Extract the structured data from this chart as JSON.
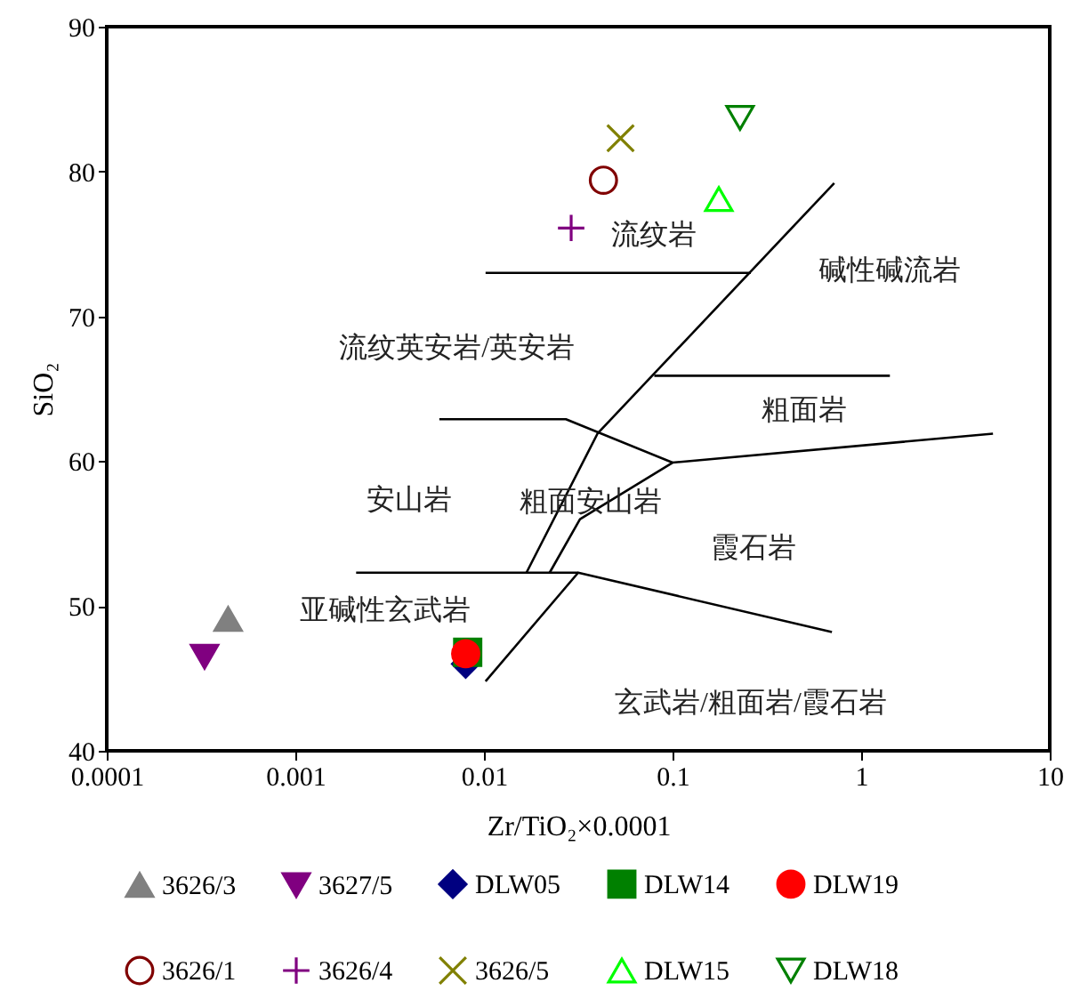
{
  "chart_data": {
    "type": "scatter",
    "xlabel": "Zr/TiO₂×0.0001",
    "ylabel": "SiO₂",
    "log": "x",
    "xlim": [
      0.0001,
      10
    ],
    "ylim": [
      40,
      90
    ],
    "xticks": [
      0.0001,
      0.001,
      0.01,
      0.1,
      1,
      10
    ],
    "yticks": [
      40,
      50,
      60,
      70,
      80,
      90
    ],
    "grid": false,
    "legend": "bottom",
    "series": [
      {
        "type": "line",
        "color": "#000000",
        "x": [
          0.0102,
          0.0316,
          0.7
        ],
        "values": [
          44.8,
          52.3,
          48.2
        ]
      },
      {
        "type": "line",
        "color": "#000000",
        "x": [
          0.0021,
          0.0316
        ],
        "values": [
          52.3,
          52.3
        ]
      },
      {
        "type": "line",
        "color": "#000000",
        "x": [
          0.0168,
          0.04,
          0.72
        ],
        "values": [
          52.3,
          61.9,
          79.2
        ]
      },
      {
        "type": "line",
        "color": "#000000",
        "x": [
          0.0223,
          0.0323,
          0.1,
          5.0
        ],
        "values": [
          52.3,
          56.0,
          59.9,
          61.9
        ]
      },
      {
        "type": "line",
        "color": "#000000",
        "x": [
          0.0058,
          0.0272,
          0.1
        ],
        "values": [
          62.9,
          62.9,
          59.9
        ]
      },
      {
        "type": "line",
        "color": "#000000",
        "x": [
          0.08,
          1.42
        ],
        "values": [
          65.9,
          65.9
        ]
      },
      {
        "type": "line",
        "color": "#000000",
        "x": [
          0.0102,
          0.26
        ],
        "values": [
          73.0,
          73.0
        ]
      },
      {
        "name": "3626/3",
        "color": "#808080",
        "marker": "triangle",
        "x": [
          0.00044
        ],
        "values": [
          49.1
        ]
      },
      {
        "name": "3627/5",
        "color": "#800080",
        "marker": "triangle-down",
        "x": [
          0.00033
        ],
        "values": [
          46.5
        ]
      },
      {
        "name": "DLW05",
        "color": "#000080",
        "marker": "diamond",
        "x": [
          0.008
        ],
        "values": [
          46.0
        ]
      },
      {
        "name": "DLW14",
        "color": "#008000",
        "marker": "square",
        "x": [
          0.0082
        ],
        "values": [
          46.8
        ]
      },
      {
        "name": "DLW19",
        "color": "#ff0000",
        "marker": "circle",
        "x": [
          0.008
        ],
        "values": [
          46.7
        ]
      },
      {
        "name": "3626/1",
        "color": "#800000",
        "marker": "circle-open",
        "x": [
          0.043
        ],
        "values": [
          79.4
        ]
      },
      {
        "name": "3626/4",
        "color": "#800080",
        "marker": "plus",
        "x": [
          0.029
        ],
        "values": [
          76.1
        ]
      },
      {
        "name": "3626/5",
        "color": "#808000",
        "marker": "x",
        "x": [
          0.053
        ],
        "values": [
          82.3
        ]
      },
      {
        "name": "DLW15",
        "color": "#00ff00",
        "marker": "triangle-open",
        "x": [
          0.176
        ],
        "values": [
          78.1
        ]
      },
      {
        "name": "DLW18",
        "color": "#008000",
        "marker": "triangle-down-open",
        "x": [
          0.228
        ],
        "values": [
          83.7
        ]
      }
    ],
    "annotations": [
      "流纹岩",
      "碱性碱流岩",
      "流纹英安岩/英安岩",
      "粗面岩",
      "安山岩",
      "粗面安山岩",
      "霞石岩",
      "亚碱性玄武岩",
      "玄武岩/粗面岩/霞石岩"
    ]
  }
}
